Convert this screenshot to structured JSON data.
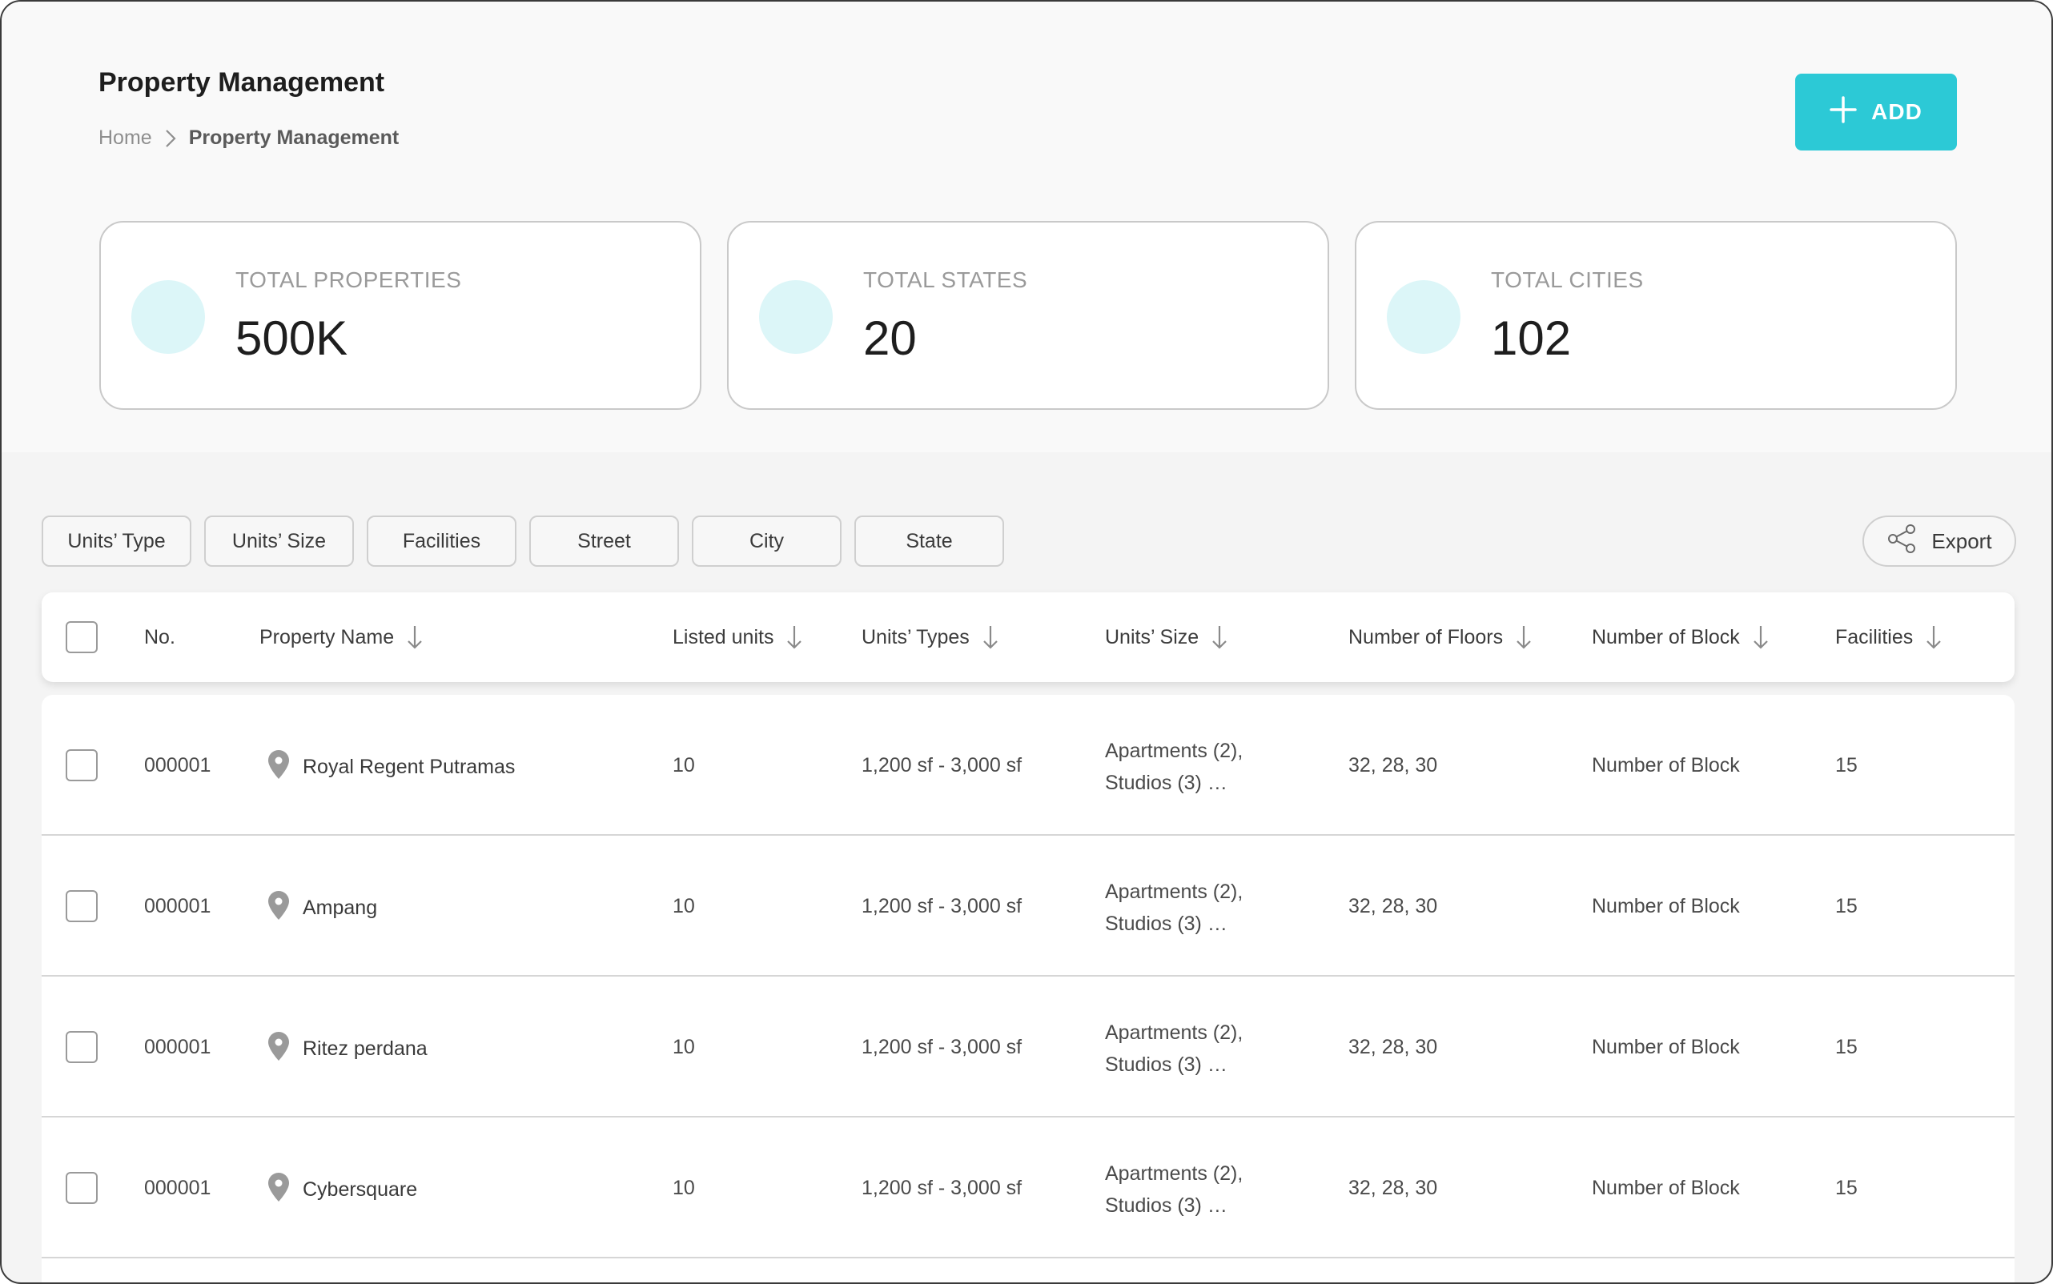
{
  "header": {
    "title": "Property Management",
    "breadcrumb": {
      "home": "Home",
      "current": "Property Management"
    },
    "add_label": "ADD"
  },
  "stats": [
    {
      "label": "TOTAL PROPERTIES",
      "value": "500K"
    },
    {
      "label": "TOTAL STATES",
      "value": "20"
    },
    {
      "label": "TOTAL CITIES",
      "value": "102"
    }
  ],
  "filters": [
    "Units’ Type",
    "Units’ Size",
    "Facilities",
    "Street",
    "City",
    "State"
  ],
  "export_label": "Export",
  "table": {
    "columns": [
      "No.",
      "Property Name",
      "Listed units",
      "Units’ Types",
      "Units’ Size",
      "Number of Floors",
      "Number of Block",
      "Facilities"
    ],
    "rows": [
      {
        "no": "000001",
        "name": "Royal Regent Putramas",
        "listed": "10",
        "types": "1,200 sf - 3,000 sf",
        "size_line1": "Apartments (2),",
        "size_line2": "Studios (3) …",
        "floors": "32, 28, 30",
        "block": "Number of Block",
        "facilities": "15"
      },
      {
        "no": "000001",
        "name": "Ampang",
        "listed": "10",
        "types": "1,200 sf - 3,000 sf",
        "size_line1": "Apartments (2),",
        "size_line2": "Studios (3) …",
        "floors": "32, 28, 30",
        "block": "Number of Block",
        "facilities": "15"
      },
      {
        "no": "000001",
        "name": "Ritez perdana",
        "listed": "10",
        "types": "1,200 sf - 3,000 sf",
        "size_line1": "Apartments (2),",
        "size_line2": "Studios (3) …",
        "floors": "32, 28, 30",
        "block": "Number of Block",
        "facilities": "15"
      },
      {
        "no": "000001",
        "name": "Cybersquare",
        "listed": "10",
        "types": "1,200 sf - 3,000 sf",
        "size_line1": "Apartments (2),",
        "size_line2": "Studios (3) …",
        "floors": "32, 28, 30",
        "block": "Number of Block",
        "facilities": "15"
      }
    ]
  },
  "colors": {
    "accent": "#2cc9d6",
    "stat_dot": "#dcf6f8",
    "border": "#cfcfcf"
  },
  "icons": {
    "add": "plus-icon",
    "export": "share-icon",
    "sort": "arrow-down-icon",
    "location": "location-pin-icon",
    "breadcrumb": "chevron-right-icon"
  }
}
